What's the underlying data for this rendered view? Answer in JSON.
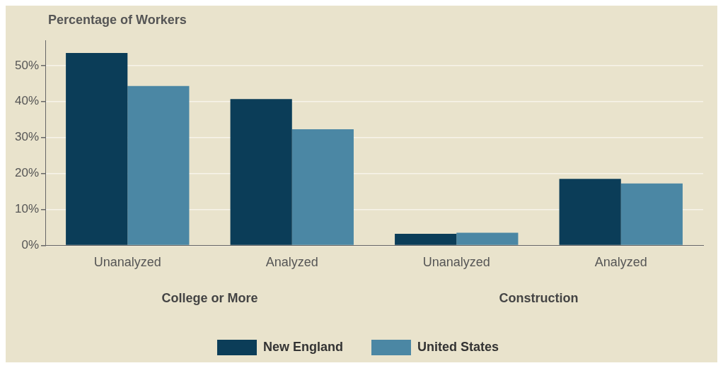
{
  "chart_data": {
    "type": "bar",
    "ylabel": "Percentage of Workers",
    "categories": [
      "Unanalyzed",
      "Analyzed",
      "Unanalyzed",
      "Analyzed"
    ],
    "series": [
      {
        "name": "New England",
        "color": "#0b3d58",
        "values": [
          53.5,
          40.7,
          3.2,
          18.5
        ]
      },
      {
        "name": "United States",
        "color": "#4b87a4",
        "values": [
          44.3,
          32.3,
          3.5,
          17.2
        ]
      }
    ],
    "annotations": [
      "College or More",
      "Construction"
    ],
    "ylim": [
      0,
      57
    ],
    "yticks": [
      {
        "value": 0,
        "label": "0%"
      },
      {
        "value": 10,
        "label": "10%"
      },
      {
        "value": 20,
        "label": "20%"
      },
      {
        "value": 30,
        "label": "30%"
      },
      {
        "value": 40,
        "label": "40%"
      },
      {
        "value": 50,
        "label": "50%"
      }
    ],
    "grid": "y",
    "legend": "bottom"
  }
}
